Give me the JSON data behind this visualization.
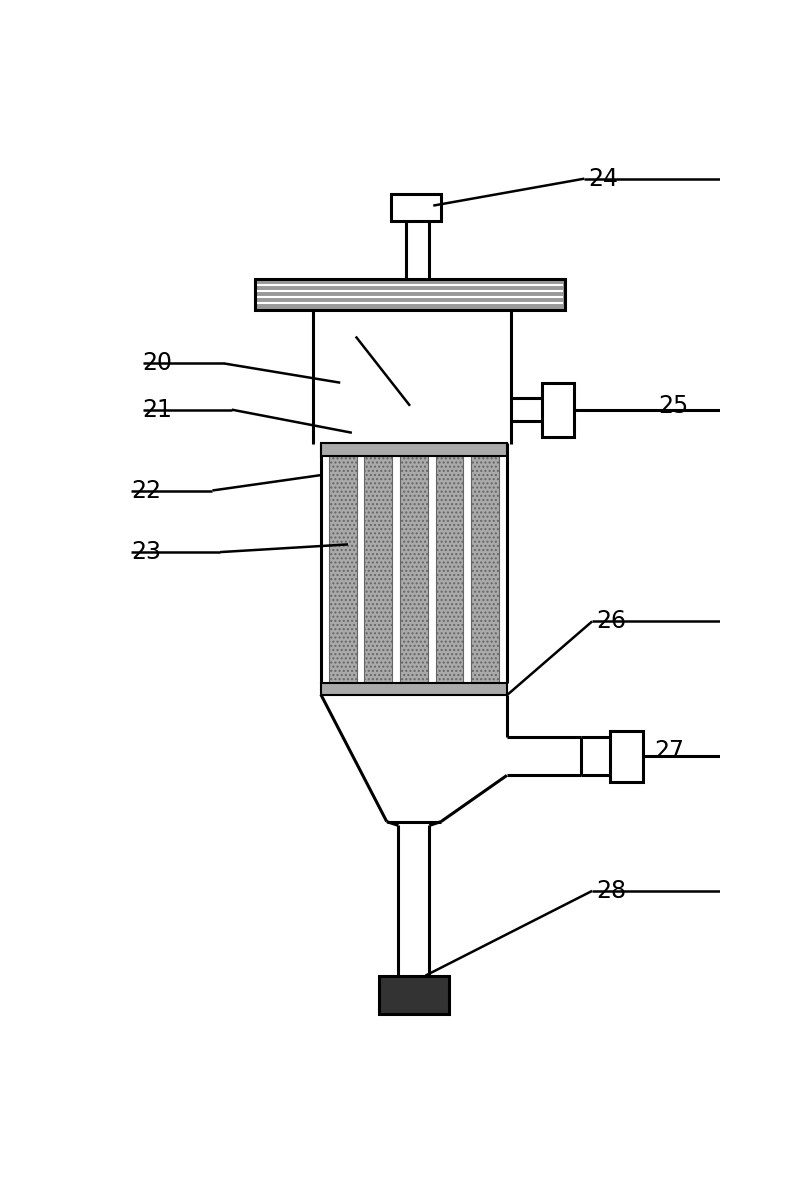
{
  "bg_color": "#ffffff",
  "line_color": "#000000",
  "lw": 2.2,
  "label_fontsize": 17,
  "filter_color": "#888888",
  "cap_color": "#999999",
  "flange_color": "#333333"
}
